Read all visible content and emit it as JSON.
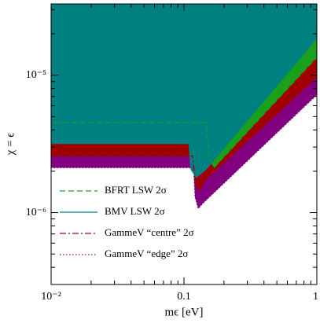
{
  "chart_data": {
    "type": "region",
    "xlabel": "mϵ [eV]",
    "ylabel": "χ = ϵ",
    "xscale": "log",
    "yscale": "log",
    "xlim": [
      0.01,
      1
    ],
    "ylim": [
      3e-07,
      3.3e-05
    ],
    "xticks": [
      {
        "value": 0.01,
        "label": "10⁻²"
      },
      0.1,
      1
    ],
    "yticks": [
      {
        "value": 1e-06,
        "label": "10⁻⁶"
      },
      {
        "value": 1e-05,
        "label": "10⁻⁵"
      }
    ],
    "xminorticks": [
      0.02,
      0.03,
      0.04,
      0.05,
      0.06,
      0.07,
      0.08,
      0.09,
      0.2,
      0.3,
      0.4,
      0.5,
      0.6,
      0.7,
      0.8,
      0.9
    ],
    "yminorticks": [
      4e-07,
      5e-07,
      6e-07,
      7e-07,
      8e-07,
      9e-07,
      2e-06,
      3e-06,
      4e-06,
      5e-06,
      6e-06,
      7e-06,
      8e-06,
      9e-06,
      2e-05,
      3e-05
    ],
    "legend": "lower-left",
    "series": [
      {
        "name": "GammeV “edge” 2σ",
        "color": "#800080",
        "style": "dotted",
        "x": [
          0.01,
          0.01,
          0.118,
          0.121,
          0.128,
          0.139,
          1,
          1
        ],
        "y": [
          3.3e-05,
          2.12e-06,
          2.12e-06,
          1.3e-06,
          1.07e-06,
          1.17e-06,
          7.2e-06,
          3.3e-05
        ]
      },
      {
        "name": "GammeV “centre” 2σ",
        "color": "#a00000",
        "style": "dashdot",
        "x": [
          0.01,
          0.01,
          0.116,
          0.123,
          0.131,
          0.146,
          1,
          1
        ],
        "y": [
          3.3e-05,
          2.58e-06,
          2.58e-06,
          1.58e-06,
          1.45e-06,
          1.74e-06,
          9.7e-06,
          3.3e-05
        ]
      },
      {
        "name": "BFRT LSW 2σ",
        "color": "#1aa01a",
        "style": "dashed",
        "x": [
          0.01,
          0.01,
          0.146,
          0.155,
          0.168,
          1,
          1
        ],
        "y": [
          3.3e-05,
          4.54e-06,
          4.54e-06,
          2.51e-06,
          2.12e-06,
          1.35e-05,
          3.3e-05
        ]
      },
      {
        "name": "BMV LSW 2σ",
        "color": "#008080",
        "style": "solid",
        "x": [
          0.01,
          0.01,
          0.109,
          0.113,
          0.124,
          0.146,
          1,
          1
        ],
        "y": [
          3.3e-05,
          3.18e-06,
          3.18e-06,
          2.06e-06,
          1.81e-06,
          2.06e-06,
          1.86e-05,
          3.3e-05
        ]
      }
    ],
    "legend_order": [
      2,
      3,
      1,
      0
    ]
  }
}
